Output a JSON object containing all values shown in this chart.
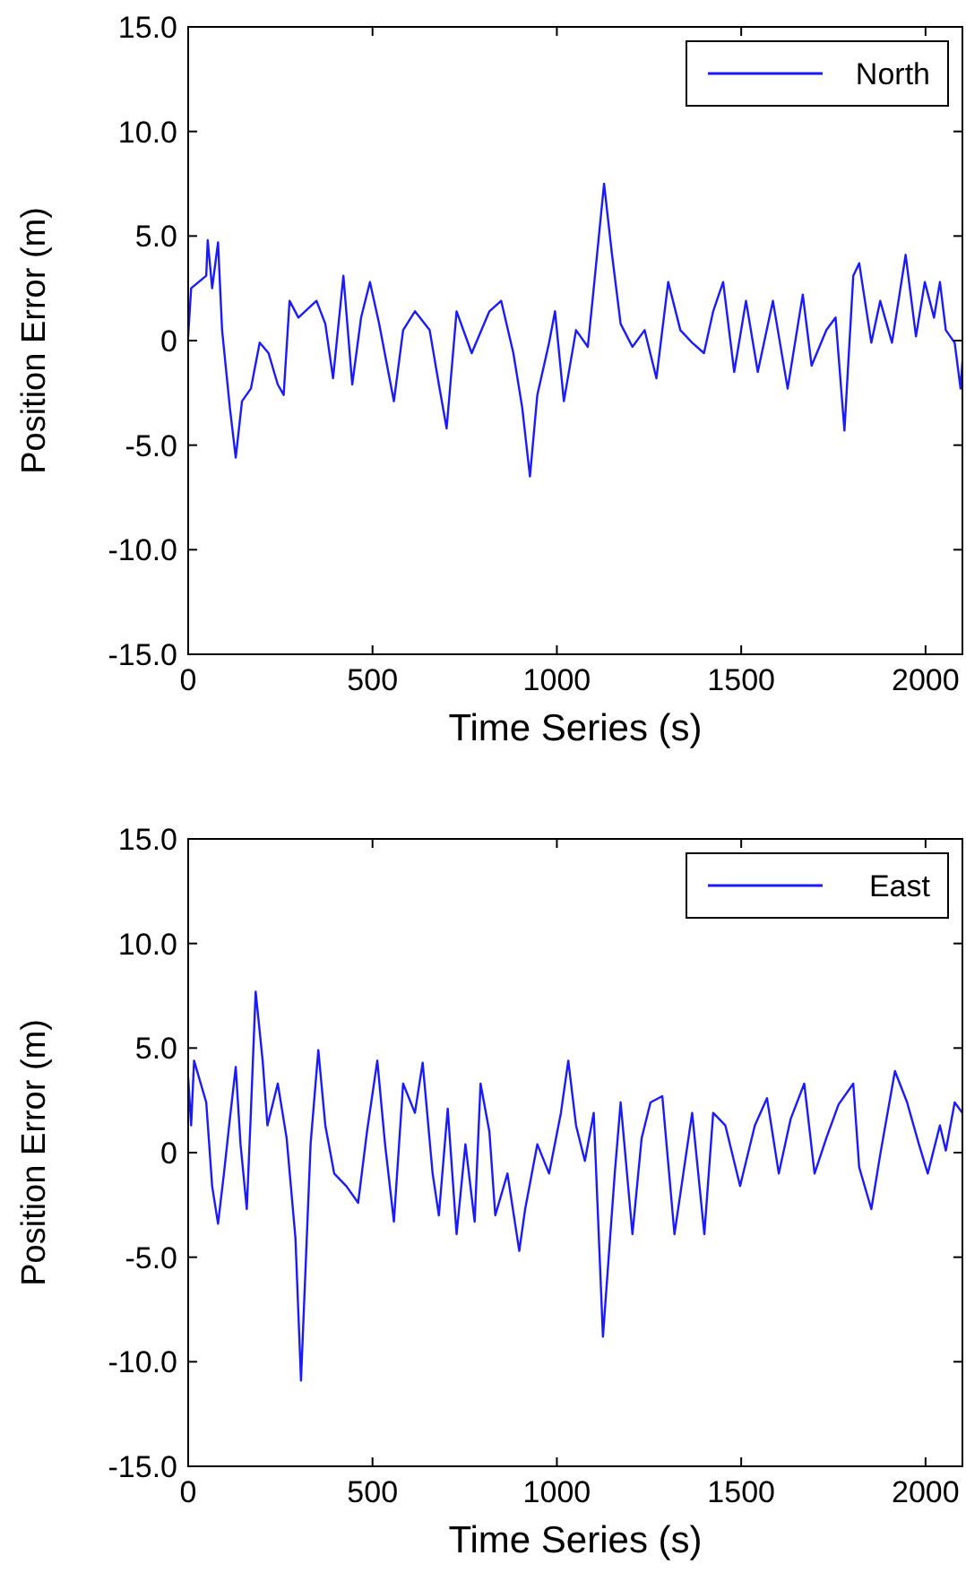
{
  "chart_data": [
    {
      "type": "line",
      "xlabel": "Time Series (s)",
      "ylabel": "Position Error (m)",
      "xlim": [
        0,
        2100
      ],
      "xticks": [
        0,
        500,
        1000,
        1500,
        2000
      ],
      "ylim": [
        -15,
        15
      ],
      "yticks": [
        {
          "value": -15,
          "label": "-15.0"
        },
        {
          "value": -10,
          "label": "-10.0"
        },
        {
          "value": -5,
          "label": "-5.0"
        },
        0,
        {
          "value": 5,
          "label": "5.0"
        },
        {
          "value": 10,
          "label": "10.0"
        },
        {
          "value": 15,
          "label": "15.0"
        }
      ],
      "legend": "top right",
      "grid": false,
      "series": [
        {
          "name": "North",
          "color": "#1a1aff",
          "x": [
            0,
            8,
            49,
            53,
            65,
            81,
            92,
            113,
            129,
            146,
            170,
            194,
            218,
            243,
            259,
            275,
            299,
            348,
            372,
            393,
            421,
            445,
            469,
            493,
            518,
            558,
            583,
            615,
            655,
            680,
            701,
            728,
            769,
            817,
            849,
            882,
            906,
            927,
            947,
            979,
            995,
            1019,
            1052,
            1084,
            1100,
            1128,
            1149,
            1173,
            1205,
            1238,
            1270,
            1302,
            1335,
            1367,
            1399,
            1424,
            1451,
            1481,
            1513,
            1545,
            1586,
            1626,
            1667,
            1691,
            1731,
            1756,
            1780,
            1804,
            1820,
            1853,
            1877,
            1909,
            1946,
            1974,
            1998,
            2023,
            2039,
            2055,
            2079,
            2095,
            2100
          ],
          "values": [
            0.2,
            2.5,
            3.1,
            4.8,
            2.5,
            4.7,
            0.5,
            -3.2,
            -5.6,
            -2.9,
            -2.3,
            -0.1,
            -0.6,
            -2.1,
            -2.6,
            1.9,
            1.1,
            1.9,
            0.8,
            -1.8,
            3.1,
            -2.1,
            1.1,
            2.8,
            0.8,
            -2.9,
            0.5,
            1.4,
            0.5,
            -2.1,
            -4.2,
            1.4,
            -0.6,
            1.4,
            1.9,
            -0.6,
            -3.2,
            -6.5,
            -2.6,
            -0.1,
            1.4,
            -2.9,
            0.5,
            -0.3,
            2.5,
            7.5,
            4.2,
            0.8,
            -0.3,
            0.5,
            -1.8,
            2.8,
            0.5,
            -0.1,
            -0.6,
            1.4,
            2.8,
            -1.5,
            1.9,
            -1.5,
            1.9,
            -2.3,
            2.2,
            -1.2,
            0.5,
            1.1,
            -4.3,
            3.1,
            3.7,
            -0.1,
            1.9,
            -0.1,
            4.1,
            0.2,
            2.8,
            1.1,
            2.8,
            0.5,
            -0.1,
            -2.3,
            -1.0
          ]
        }
      ]
    },
    {
      "type": "line",
      "xlabel": "Time Series (s)",
      "ylabel": "Position Error (m)",
      "xlim": [
        0,
        2100
      ],
      "xticks": [
        0,
        500,
        1000,
        1500,
        2000
      ],
      "ylim": [
        -15,
        15
      ],
      "yticks": [
        {
          "value": -15,
          "label": "-15.0"
        },
        {
          "value": -10,
          "label": "-10.0"
        },
        {
          "value": -5,
          "label": "-5.0"
        },
        0,
        {
          "value": 5,
          "label": "5.0"
        },
        {
          "value": 10,
          "label": "10.0"
        },
        {
          "value": 15,
          "label": "15.0"
        }
      ],
      "legend": "top right",
      "grid": false,
      "series": [
        {
          "name": "East",
          "color": "#1a1aff",
          "x": [
            0,
            8,
            16,
            49,
            65,
            81,
            97,
            113,
            129,
            142,
            159,
            170,
            183,
            202,
            215,
            243,
            267,
            291,
            306,
            332,
            353,
            372,
            396,
            429,
            461,
            485,
            513,
            534,
            558,
            583,
            615,
            636,
            663,
            680,
            704,
            728,
            752,
            777,
            793,
            817,
            833,
            866,
            898,
            914,
            947,
            979,
            1011,
            1031,
            1052,
            1076,
            1100,
            1125,
            1157,
            1173,
            1205,
            1230,
            1254,
            1286,
            1319,
            1343,
            1367,
            1400,
            1424,
            1457,
            1497,
            1537,
            1570,
            1602,
            1634,
            1671,
            1699,
            1731,
            1764,
            1804,
            1820,
            1853,
            1877,
            1917,
            1950,
            1982,
            2006,
            2039,
            2055,
            2079,
            2100
          ],
          "values": [
            3.6,
            1.3,
            4.4,
            2.4,
            -1.6,
            -3.4,
            -1.0,
            1.6,
            4.1,
            0.4,
            -2.7,
            1.9,
            7.7,
            4.4,
            1.3,
            3.3,
            0.7,
            -4.1,
            -10.9,
            0.4,
            4.9,
            1.3,
            -1.0,
            -1.6,
            -2.4,
            1.0,
            4.4,
            0.4,
            -3.3,
            3.3,
            1.9,
            4.3,
            -1.0,
            -3.0,
            2.1,
            -3.9,
            0.4,
            -3.3,
            3.3,
            1.0,
            -3.0,
            -1.0,
            -4.7,
            -2.7,
            0.4,
            -1.0,
            1.9,
            4.4,
            1.3,
            -0.4,
            1.9,
            -8.8,
            -1.0,
            2.4,
            -3.9,
            0.7,
            2.4,
            2.7,
            -3.9,
            -1.0,
            1.9,
            -3.9,
            1.9,
            1.3,
            -1.6,
            1.3,
            2.6,
            -1.0,
            1.6,
            3.3,
            -1.0,
            0.7,
            2.3,
            3.3,
            -0.7,
            -2.7,
            -0.1,
            3.9,
            2.4,
            0.4,
            -1.0,
            1.3,
            0.1,
            2.4,
            1.9
          ]
        }
      ]
    }
  ]
}
